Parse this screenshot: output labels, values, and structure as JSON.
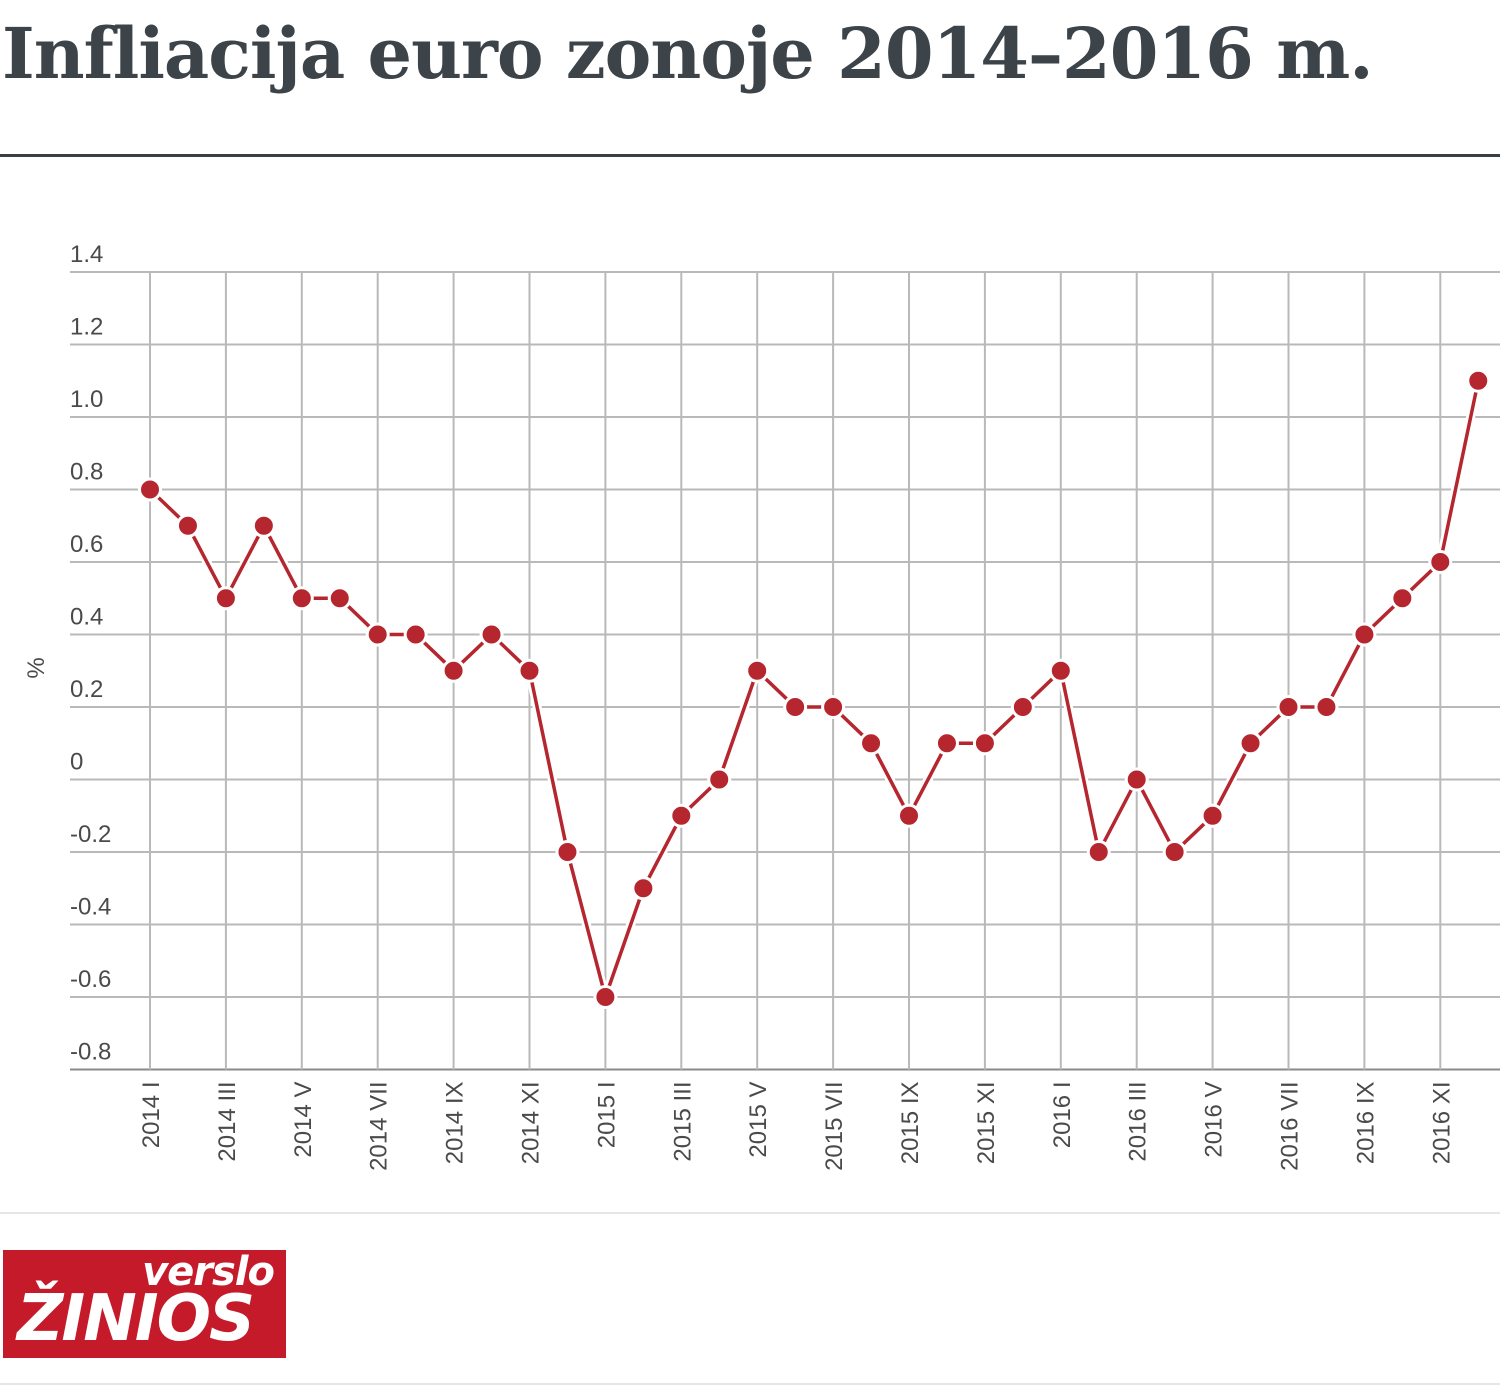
{
  "title": "Infliacija euro zonoje 2014–2016 m.",
  "logo": {
    "line1": "verslo",
    "line2": "ŽINIOS",
    "color": "#c41a2a"
  },
  "chart_data": {
    "type": "line",
    "title": "Infliacija euro zonoje 2014–2016 m.",
    "xlabel": "",
    "ylabel": "%",
    "ylim": [
      -0.8,
      1.4
    ],
    "yticks": [
      "1.4",
      "1.2",
      "1.0",
      "0.8",
      "0.6",
      "0.4",
      "0.2",
      "0",
      "-0.2",
      "-0.4",
      "-0.6",
      "-0.8"
    ],
    "xticks": [
      "2014 I",
      "2014 III",
      "2014 V",
      "2014 VII",
      "2014 IX",
      "2014 XI",
      "2015 I",
      "2015 III",
      "2015 V",
      "2015 VII",
      "2015 IX",
      "2015 XI",
      "2016 I",
      "2016 III",
      "2016 V",
      "2016 VII",
      "2016 IX",
      "2016 XI"
    ],
    "grid": true,
    "legend": "none",
    "line_color": "#b5262f",
    "x": [
      "2014 I",
      "2014 II",
      "2014 III",
      "2014 IV",
      "2014 V",
      "2014 VI",
      "2014 VII",
      "2014 VIII",
      "2014 IX",
      "2014 X",
      "2014 XI",
      "2014 XII",
      "2015 I",
      "2015 II",
      "2015 III",
      "2015 IV",
      "2015 V",
      "2015 VI",
      "2015 VII",
      "2015 VIII",
      "2015 IX",
      "2015 X",
      "2015 XI",
      "2015 XII",
      "2016 I",
      "2016 II",
      "2016 III",
      "2016 IV",
      "2016 V",
      "2016 VI",
      "2016 VII",
      "2016 VIII",
      "2016 IX",
      "2016 X",
      "2016 XI",
      "2016 XII"
    ],
    "series": [
      {
        "values": [
          0.8,
          0.7,
          0.5,
          0.7,
          0.5,
          0.5,
          0.4,
          0.4,
          0.3,
          0.4,
          0.3,
          -0.2,
          -0.6,
          -0.3,
          -0.1,
          0.0,
          0.3,
          0.2,
          0.2,
          0.1,
          -0.1,
          0.1,
          0.1,
          0.2,
          0.3,
          -0.2,
          0.0,
          -0.2,
          -0.1,
          0.1,
          0.2,
          0.2,
          0.4,
          0.5,
          0.6,
          1.1
        ]
      }
    ]
  }
}
